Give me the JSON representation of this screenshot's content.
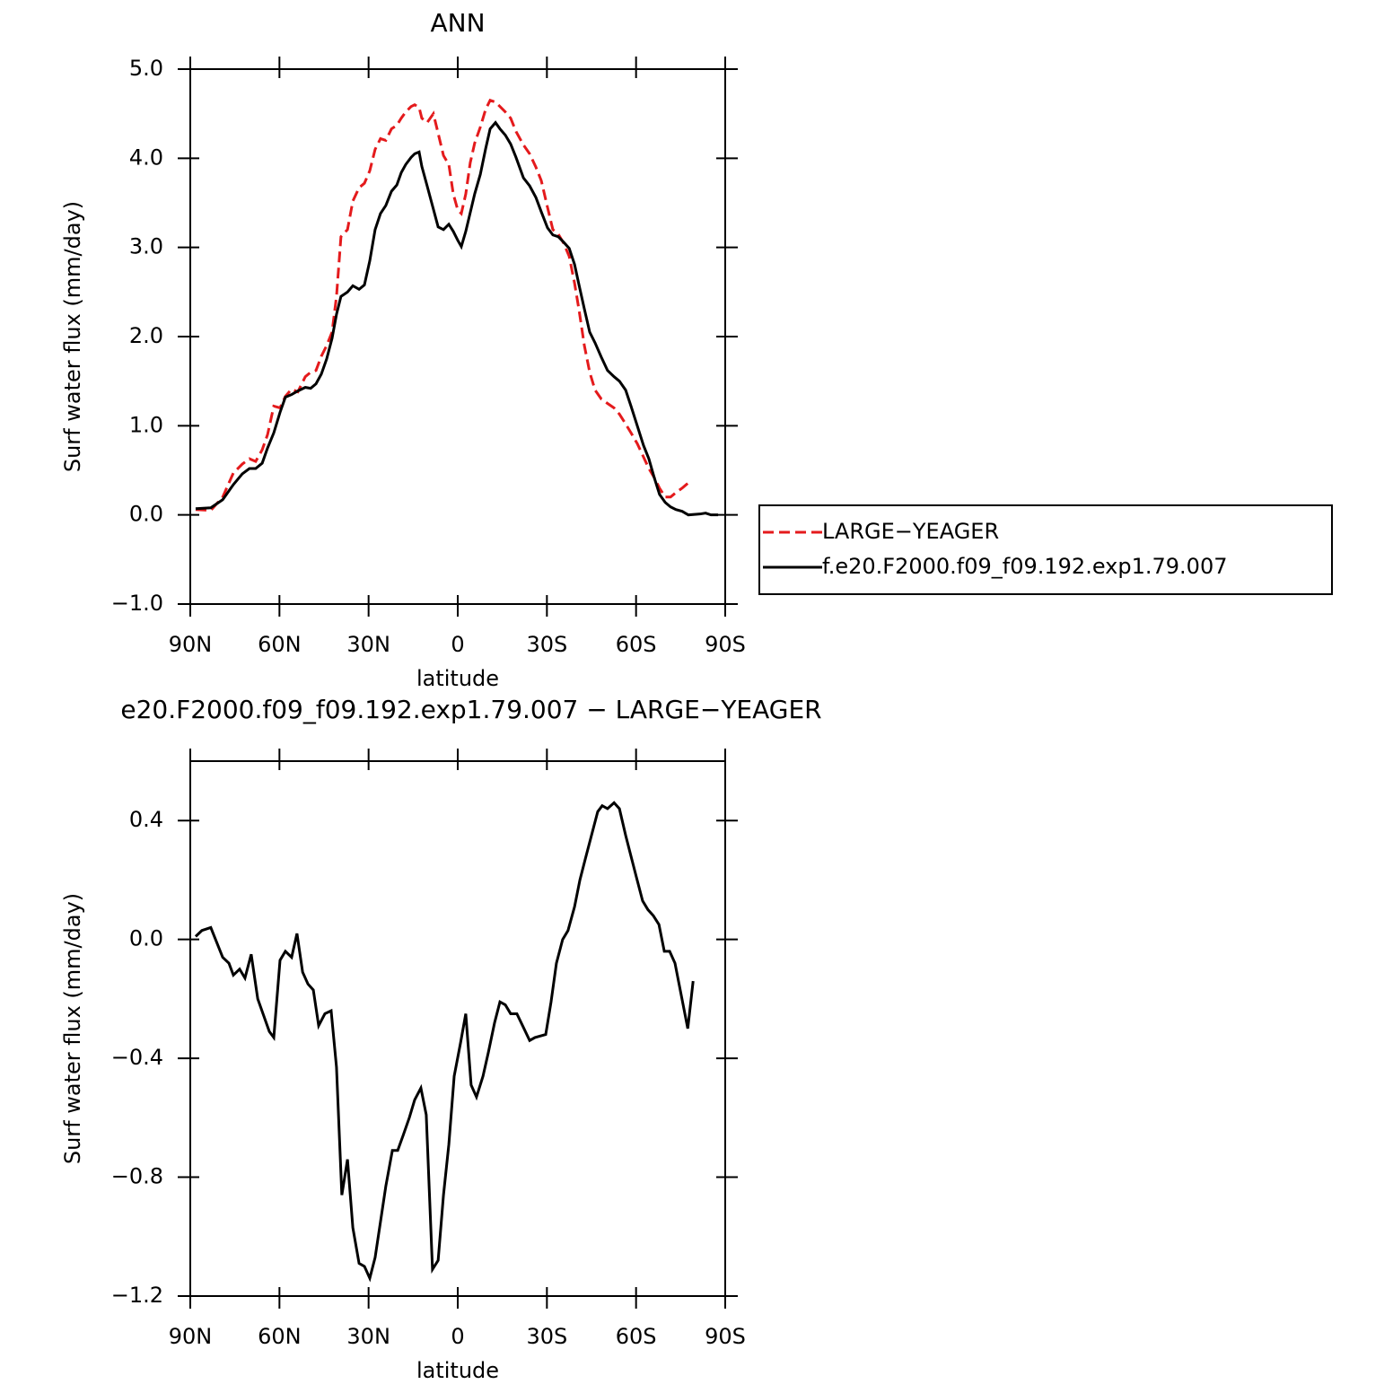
{
  "chart_data": [
    {
      "type": "line",
      "title": "ANN",
      "xlabel": "latitude",
      "ylabel": "Surf water flux (mm/day)",
      "xlim": [
        90,
        -90
      ],
      "xticks": [
        {
          "value": 90,
          "label": "90N"
        },
        {
          "value": 60,
          "label": "60N"
        },
        {
          "value": 30,
          "label": "30N"
        },
        0,
        {
          "value": -30,
          "label": "30S"
        },
        {
          "value": -60,
          "label": "60S"
        },
        {
          "value": -90,
          "label": "90S"
        }
      ],
      "ylim": [
        -1,
        5
      ],
      "yticks": [
        {
          "value": -1,
          "label": "−1.0"
        },
        {
          "value": 0,
          "label": "0.0"
        },
        {
          "value": 1,
          "label": "1.0"
        },
        {
          "value": 2,
          "label": "2.0"
        },
        {
          "value": 3,
          "label": "3.0"
        },
        {
          "value": 4,
          "label": "4.0"
        },
        {
          "value": 5,
          "label": "5.0"
        }
      ],
      "legend": "right",
      "x": [
        88.2,
        83.1,
        79.1,
        75.5,
        72.5,
        70.1,
        68.0,
        65.8,
        64.0,
        61.9,
        59.8,
        58.0,
        55.9,
        53.8,
        51.3,
        49.5,
        47.7,
        45.9,
        44.1,
        42.3,
        40.8,
        39.3,
        37.1,
        35.3,
        33.2,
        31.4,
        29.6,
        27.8,
        26.0,
        24.2,
        22.3,
        20.5,
        19.0,
        17.5,
        15.7,
        14.5,
        13.0,
        12.1,
        10.3,
        8.2,
        6.6,
        4.8,
        3.0,
        1.5,
        0.0,
        -1.2,
        -2.7,
        -4.2,
        -5.7,
        -7.6,
        -9.4,
        -10.9,
        -12.7,
        -14.2,
        -16.0,
        -17.8,
        -19.6,
        -22.1,
        -24.2,
        -26.3,
        -28.1,
        -30.2,
        -32.0,
        -33.8,
        -35.6,
        -37.5,
        -39.3,
        -40.8,
        -42.6,
        -44.4,
        -46.2,
        -48.3,
        -50.4,
        -52.6,
        -54.4,
        -56.5,
        -58.3,
        -60.4,
        -62.5,
        -64.3,
        -66.1,
        -67.9,
        -69.8,
        -71.6,
        -73.4,
        -75.5,
        -77.6,
        -81.5,
        -83.4,
        -85.2,
        -87.6
      ],
      "series": [
        {
          "name": "LARGE−YEAGER",
          "color": "#e41a1c",
          "dash": true,
          "values": [
            0.06,
            0.05,
            0.2,
            0.47,
            0.57,
            0.63,
            0.6,
            0.73,
            0.9,
            1.22,
            1.2,
            1.33,
            1.41,
            1.38,
            1.55,
            1.6,
            1.62,
            1.78,
            1.9,
            2.05,
            2.45,
            3.12,
            3.2,
            3.52,
            3.67,
            3.72,
            3.86,
            4.1,
            4.22,
            4.2,
            4.33,
            4.37,
            4.45,
            4.52,
            4.58,
            4.6,
            4.57,
            4.45,
            4.4,
            4.5,
            4.28,
            4.03,
            3.93,
            3.6,
            3.42,
            3.38,
            3.6,
            3.95,
            4.17,
            4.35,
            4.55,
            4.65,
            4.63,
            4.58,
            4.52,
            4.45,
            4.3,
            4.15,
            4.05,
            3.9,
            3.75,
            3.45,
            3.2,
            3.15,
            3.05,
            2.9,
            2.6,
            2.3,
            1.9,
            1.6,
            1.4,
            1.3,
            1.25,
            1.2,
            1.13,
            1.02,
            0.92,
            0.8,
            0.65,
            0.52,
            0.42,
            0.3,
            0.2,
            0.2,
            0.25,
            0.3,
            0.36,
            null,
            null,
            null,
            null
          ]
        },
        {
          "name": "f.e20.F2000.f09_f09.192.exp1.79.007",
          "color": "#000000",
          "dash": false,
          "values": [
            0.07,
            0.08,
            0.17,
            0.34,
            0.46,
            0.52,
            0.52,
            0.58,
            0.75,
            0.92,
            1.15,
            1.32,
            1.35,
            1.39,
            1.43,
            1.42,
            1.47,
            1.58,
            1.75,
            1.98,
            2.25,
            2.45,
            2.5,
            2.57,
            2.53,
            2.58,
            2.85,
            3.2,
            3.38,
            3.47,
            3.63,
            3.7,
            3.84,
            3.93,
            4.01,
            4.05,
            4.07,
            3.91,
            3.69,
            3.43,
            3.23,
            3.2,
            3.26,
            3.18,
            3.08,
            3.01,
            3.18,
            3.39,
            3.6,
            3.82,
            4.11,
            4.33,
            4.4,
            4.33,
            4.26,
            4.16,
            4.01,
            3.78,
            3.69,
            3.56,
            3.4,
            3.22,
            3.14,
            3.12,
            3.06,
            2.99,
            2.81,
            2.58,
            2.31,
            2.05,
            1.93,
            1.77,
            1.62,
            1.55,
            1.5,
            1.4,
            1.22,
            1.0,
            0.78,
            0.63,
            0.42,
            0.23,
            0.14,
            0.09,
            0.06,
            0.04,
            0.0,
            0.01,
            0.02,
            0.0,
            0.0
          ]
        }
      ]
    },
    {
      "type": "line",
      "title": "e20.F2000.f09_f09.192.exp1.79.007 − LARGE−YEAGER",
      "xlabel": "latitude",
      "ylabel": "Surf water flux (mm/day)",
      "xlim": [
        90,
        -90
      ],
      "xticks": [
        {
          "value": 90,
          "label": "90N"
        },
        {
          "value": 60,
          "label": "60N"
        },
        {
          "value": 30,
          "label": "30N"
        },
        0,
        {
          "value": -30,
          "label": "30S"
        },
        {
          "value": -60,
          "label": "60S"
        },
        {
          "value": -90,
          "label": "90S"
        }
      ],
      "ylim": [
        -1.2,
        0.6
      ],
      "yticks": [
        {
          "value": -1.2,
          "label": "−1.2"
        },
        {
          "value": -0.8,
          "label": "−0.8"
        },
        {
          "value": -0.4,
          "label": "−0.4"
        },
        {
          "value": 0,
          "label": "0.0"
        },
        0.4
      ],
      "x": [
        88.2,
        86.1,
        83.1,
        79.1,
        77.0,
        75.5,
        73.4,
        71.6,
        69.5,
        67.3,
        63.4,
        61.9,
        59.8,
        58.0,
        55.9,
        54.1,
        52.2,
        50.4,
        48.6,
        46.8,
        44.7,
        42.6,
        40.8,
        39.0,
        37.1,
        35.3,
        33.2,
        31.4,
        29.6,
        27.8,
        26.0,
        24.2,
        22.0,
        20.2,
        18.4,
        16.3,
        14.5,
        12.4,
        10.6,
        8.5,
        6.6,
        4.8,
        3.0,
        1.2,
        -0.9,
        -2.7,
        -4.5,
        -6.3,
        -8.5,
        -10.3,
        -12.4,
        -14.2,
        -16.0,
        -17.8,
        -19.9,
        -24.2,
        -26.0,
        -29.6,
        -31.4,
        -33.2,
        -35.3,
        -37.1,
        -39.3,
        -41.1,
        -42.9,
        -45.0,
        -47.1,
        -48.6,
        -50.4,
        -52.6,
        -54.4,
        -56.5,
        -58.3,
        -60.1,
        -62.2,
        -64.0,
        -65.8,
        -67.7,
        -69.5,
        -71.3,
        -73.1,
        -77.4,
        -79.2
      ],
      "series": [
        {
          "color": "#000000",
          "dash": false,
          "values": [
            0.01,
            0.03,
            0.04,
            -0.06,
            -0.08,
            -0.12,
            -0.1,
            -0.13,
            -0.05,
            -0.2,
            -0.31,
            -0.33,
            -0.07,
            -0.04,
            -0.06,
            0.02,
            -0.11,
            -0.15,
            -0.17,
            -0.29,
            -0.25,
            -0.24,
            -0.43,
            -0.86,
            -0.74,
            -0.97,
            -1.09,
            -1.1,
            -1.14,
            -1.07,
            -0.95,
            -0.83,
            -0.71,
            -0.71,
            -0.66,
            -0.6,
            -0.54,
            -0.5,
            -0.59,
            -1.11,
            -1.08,
            -0.86,
            -0.69,
            -0.46,
            -0.35,
            -0.25,
            -0.49,
            -0.53,
            -0.46,
            -0.38,
            -0.28,
            -0.21,
            -0.22,
            -0.25,
            -0.25,
            -0.34,
            -0.33,
            -0.32,
            -0.21,
            -0.08,
            0.0,
            0.03,
            0.11,
            0.2,
            0.27,
            0.35,
            0.43,
            0.45,
            0.44,
            0.46,
            0.44,
            0.35,
            0.28,
            0.21,
            0.13,
            0.1,
            0.08,
            0.05,
            -0.04,
            -0.04,
            -0.08,
            -0.3,
            -0.14
          ]
        }
      ]
    }
  ]
}
